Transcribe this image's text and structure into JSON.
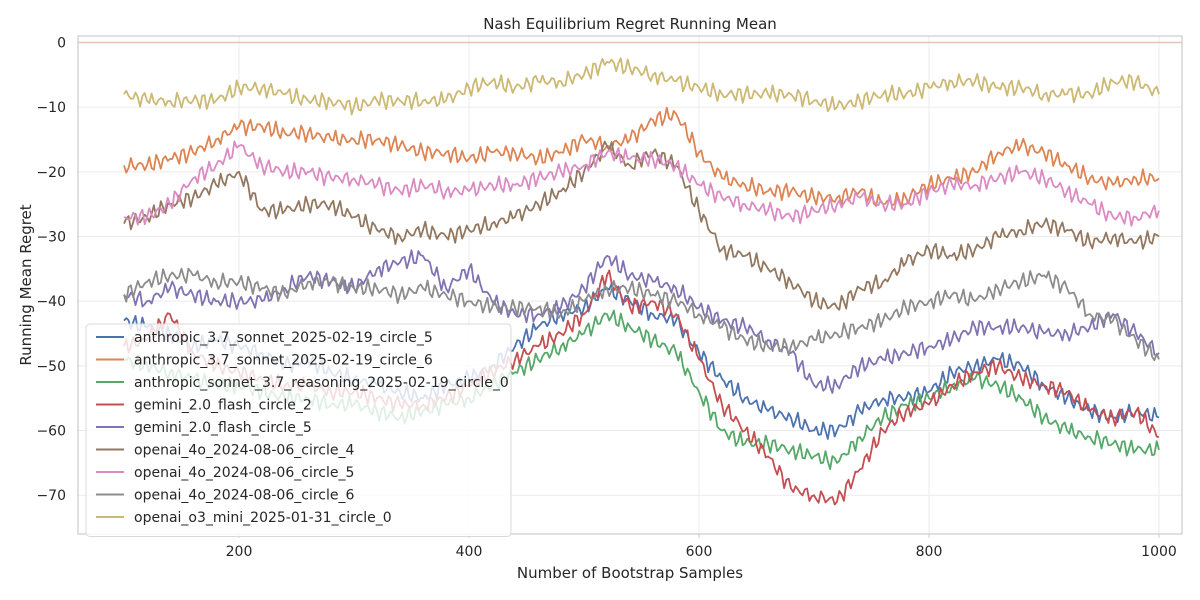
{
  "chart_data": {
    "type": "line",
    "title": "Nash Equilibrium Regret Running Mean",
    "xlabel": "Number of Bootstrap Samples",
    "ylabel": "Running Mean Regret",
    "xlim": [
      60,
      1020
    ],
    "ylim": [
      -76,
      1
    ],
    "xticks": [
      200,
      400,
      600,
      800,
      1000
    ],
    "xtick_labels": [
      "200",
      "400",
      "600",
      "800",
      "1000"
    ],
    "yticks": [
      0,
      -10,
      -20,
      -30,
      -40,
      -50,
      -60,
      -70
    ],
    "ytick_labels": [
      "0",
      "−10",
      "−20",
      "−30",
      "−40",
      "−50",
      "−60",
      "−70"
    ],
    "grid": true,
    "legend_position": "lower-left",
    "reference_line": {
      "y": 0,
      "color": "#e8c3b7"
    },
    "series": [
      {
        "name": "anthropic_3.7_sonnet_2025-02-19_circle_5",
        "color": "#4c72b0",
        "x": [
          100,
          120,
          140,
          160,
          180,
          200,
          220,
          240,
          260,
          280,
          300,
          320,
          340,
          360,
          380,
          400,
          420,
          440,
          460,
          480,
          500,
          520,
          540,
          560,
          580,
          600,
          620,
          640,
          660,
          680,
          700,
          720,
          740,
          760,
          780,
          800,
          820,
          840,
          860,
          880,
          900,
          920,
          940,
          960,
          980,
          1000
        ],
        "y": [
          -43,
          -44,
          -45,
          -47,
          -46,
          -47,
          -48,
          -50,
          -49,
          -51,
          -52,
          -53,
          -54,
          -55,
          -53,
          -52,
          -50,
          -47,
          -44,
          -42,
          -41,
          -38,
          -40,
          -42,
          -43,
          -48,
          -52,
          -55,
          -57,
          -58,
          -60,
          -60,
          -57,
          -55,
          -55,
          -54,
          -51,
          -50,
          -49,
          -50,
          -53,
          -55,
          -57,
          -58,
          -57,
          -58
        ]
      },
      {
        "name": "anthropic_3.7_sonnet_2025-02-19_circle_6",
        "color": "#dd8452",
        "x": [
          100,
          120,
          140,
          160,
          180,
          200,
          220,
          240,
          260,
          280,
          300,
          320,
          340,
          360,
          380,
          400,
          420,
          440,
          460,
          480,
          500,
          520,
          540,
          560,
          580,
          600,
          620,
          640,
          660,
          680,
          700,
          720,
          740,
          760,
          780,
          800,
          820,
          840,
          860,
          880,
          900,
          920,
          940,
          960,
          980,
          1000
        ],
        "y": [
          -19,
          -19,
          -18,
          -17,
          -15,
          -13,
          -13,
          -14,
          -14,
          -15,
          -15,
          -15,
          -16,
          -17,
          -17,
          -18,
          -17,
          -17,
          -18,
          -17,
          -15,
          -16,
          -15,
          -12,
          -11,
          -17,
          -21,
          -22,
          -23,
          -23,
          -24,
          -24,
          -23,
          -25,
          -24,
          -22,
          -21,
          -20,
          -17,
          -16,
          -17,
          -19,
          -21,
          -22,
          -21,
          -21
        ]
      },
      {
        "name": "anthropic_sonnet_3.7_reasoning_2025-02-19_circle_0",
        "color": "#55a868",
        "x": [
          100,
          120,
          140,
          160,
          180,
          200,
          220,
          240,
          260,
          280,
          300,
          320,
          340,
          360,
          380,
          400,
          420,
          440,
          460,
          480,
          500,
          520,
          540,
          560,
          580,
          600,
          620,
          640,
          660,
          680,
          700,
          720,
          740,
          760,
          780,
          800,
          820,
          840,
          860,
          880,
          900,
          920,
          940,
          960,
          980,
          1000
        ],
        "y": [
          -49,
          -50,
          -51,
          -52,
          -53,
          -53,
          -54,
          -55,
          -55,
          -56,
          -56,
          -57,
          -58,
          -57,
          -56,
          -55,
          -53,
          -51,
          -49,
          -47,
          -45,
          -42,
          -44,
          -46,
          -48,
          -54,
          -60,
          -62,
          -62,
          -63,
          -64,
          -65,
          -61,
          -58,
          -56,
          -55,
          -53,
          -52,
          -53,
          -55,
          -58,
          -60,
          -61,
          -62,
          -63,
          -63
        ]
      },
      {
        "name": "gemini_2.0_flash_circle_2",
        "color": "#c44e52",
        "x": [
          100,
          120,
          140,
          160,
          180,
          200,
          220,
          240,
          260,
          280,
          300,
          320,
          340,
          360,
          380,
          400,
          420,
          440,
          460,
          480,
          500,
          520,
          540,
          560,
          580,
          600,
          620,
          640,
          660,
          680,
          700,
          720,
          740,
          760,
          780,
          800,
          820,
          840,
          860,
          880,
          900,
          920,
          940,
          960,
          980,
          1000
        ],
        "y": [
          -47,
          -46,
          -42,
          -48,
          -50,
          -51,
          -52,
          -53,
          -53,
          -54,
          -54,
          -55,
          -56,
          -56,
          -55,
          -53,
          -51,
          -49,
          -47,
          -45,
          -42,
          -36,
          -41,
          -40,
          -42,
          -49,
          -56,
          -60,
          -64,
          -69,
          -70,
          -71,
          -66,
          -60,
          -57,
          -56,
          -53,
          -51,
          -50,
          -52,
          -53,
          -54,
          -57,
          -58,
          -57,
          -61
        ]
      },
      {
        "name": "gemini_2.0_flash_circle_5",
        "color": "#8172b2",
        "x": [
          100,
          120,
          140,
          160,
          180,
          200,
          220,
          240,
          260,
          280,
          300,
          320,
          340,
          360,
          380,
          400,
          420,
          440,
          460,
          480,
          500,
          520,
          540,
          560,
          580,
          600,
          620,
          640,
          660,
          680,
          700,
          720,
          740,
          760,
          780,
          800,
          820,
          840,
          860,
          880,
          900,
          920,
          940,
          960,
          980,
          1000
        ],
        "y": [
          -39,
          -40,
          -38,
          -39,
          -40,
          -40,
          -40,
          -38,
          -36,
          -37,
          -38,
          -35,
          -34,
          -33,
          -38,
          -35,
          -40,
          -42,
          -42,
          -41,
          -38,
          -33,
          -36,
          -37,
          -38,
          -41,
          -43,
          -44,
          -46,
          -48,
          -53,
          -53,
          -50,
          -49,
          -48,
          -47,
          -46,
          -44,
          -44,
          -44,
          -45,
          -45,
          -44,
          -42,
          -45,
          -48
        ]
      },
      {
        "name": "openai_4o_2024-08-06_circle_4",
        "color": "#937860",
        "x": [
          100,
          120,
          140,
          160,
          180,
          200,
          220,
          240,
          260,
          280,
          300,
          320,
          340,
          360,
          380,
          400,
          420,
          440,
          460,
          480,
          500,
          520,
          540,
          560,
          580,
          600,
          620,
          640,
          660,
          680,
          700,
          720,
          740,
          760,
          780,
          800,
          820,
          840,
          860,
          880,
          900,
          920,
          940,
          960,
          980,
          1000
        ],
        "y": [
          -28,
          -27,
          -25,
          -24,
          -22,
          -20,
          -26,
          -26,
          -25,
          -25,
          -27,
          -29,
          -30,
          -29,
          -30,
          -29,
          -28,
          -27,
          -25,
          -23,
          -20,
          -16,
          -19,
          -17,
          -19,
          -26,
          -32,
          -33,
          -35,
          -37,
          -40,
          -41,
          -38,
          -37,
          -34,
          -32,
          -33,
          -32,
          -30,
          -29,
          -28,
          -29,
          -31,
          -30,
          -31,
          -30
        ]
      },
      {
        "name": "openai_4o_2024-08-06_circle_5",
        "color": "#da8bc3",
        "x": [
          100,
          120,
          140,
          160,
          180,
          200,
          220,
          240,
          260,
          280,
          300,
          320,
          340,
          360,
          380,
          400,
          420,
          440,
          460,
          480,
          500,
          520,
          540,
          560,
          580,
          600,
          620,
          640,
          660,
          680,
          700,
          720,
          740,
          760,
          780,
          800,
          820,
          840,
          860,
          880,
          900,
          920,
          940,
          960,
          980,
          1000
        ],
        "y": [
          -27,
          -27,
          -25,
          -21,
          -19,
          -16,
          -19,
          -20,
          -20,
          -21,
          -21,
          -22,
          -23,
          -22,
          -23,
          -23,
          -22,
          -22,
          -21,
          -20,
          -19,
          -17,
          -18,
          -18,
          -19,
          -22,
          -24,
          -25,
          -26,
          -27,
          -26,
          -25,
          -24,
          -25,
          -25,
          -23,
          -22,
          -22,
          -21,
          -20,
          -21,
          -23,
          -25,
          -27,
          -27,
          -26
        ]
      },
      {
        "name": "openai_4o_2024-08-06_circle_6",
        "color": "#8c8c8c",
        "x": [
          100,
          120,
          140,
          160,
          180,
          200,
          220,
          240,
          260,
          280,
          300,
          320,
          340,
          360,
          380,
          400,
          420,
          440,
          460,
          480,
          500,
          520,
          540,
          560,
          580,
          600,
          620,
          640,
          660,
          680,
          700,
          720,
          740,
          760,
          780,
          800,
          820,
          840,
          860,
          880,
          900,
          920,
          940,
          960,
          980,
          1000
        ],
        "y": [
          -39,
          -37,
          -36,
          -36,
          -37,
          -37,
          -38,
          -39,
          -37,
          -37,
          -38,
          -38,
          -39,
          -38,
          -39,
          -40,
          -41,
          -41,
          -41,
          -42,
          -40,
          -38,
          -38,
          -39,
          -40,
          -42,
          -44,
          -46,
          -47,
          -47,
          -46,
          -45,
          -44,
          -43,
          -41,
          -40,
          -39,
          -40,
          -38,
          -37,
          -36,
          -38,
          -42,
          -43,
          -46,
          -49
        ]
      },
      {
        "name": "openai_o3_mini_2025-01-31_circle_0",
        "color": "#ccb974",
        "x": [
          100,
          120,
          140,
          160,
          180,
          200,
          220,
          240,
          260,
          280,
          300,
          320,
          340,
          360,
          380,
          400,
          420,
          440,
          460,
          480,
          500,
          520,
          540,
          560,
          580,
          600,
          620,
          640,
          660,
          680,
          700,
          720,
          740,
          760,
          780,
          800,
          820,
          840,
          860,
          880,
          900,
          920,
          940,
          960,
          980,
          1000
        ],
        "y": [
          -8,
          -9,
          -9,
          -9,
          -9,
          -7,
          -7,
          -8,
          -9,
          -9,
          -10,
          -9,
          -9,
          -9,
          -9,
          -7,
          -6,
          -7,
          -6,
          -6,
          -5,
          -3,
          -4,
          -5,
          -6,
          -7,
          -8,
          -8,
          -8,
          -8,
          -9,
          -10,
          -9,
          -8,
          -8,
          -7,
          -6,
          -6,
          -7,
          -7,
          -8,
          -8,
          -8,
          -6,
          -6,
          -8
        ]
      }
    ]
  }
}
